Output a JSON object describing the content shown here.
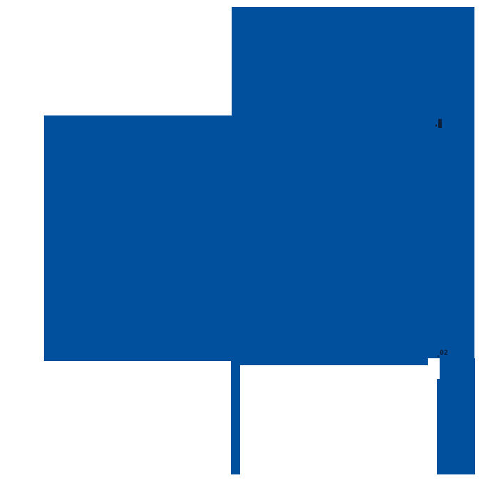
{
  "canvas": {
    "background_color": "#ffffff",
    "accent_blue": "#00509e",
    "artifact_color": "#0c1e38"
  },
  "shapes": {
    "right_block": {
      "name": "large-right-blue-block"
    },
    "left_block": {
      "name": "large-left-blue-block"
    },
    "vertical_bar": {
      "name": "thin-descending-bar"
    },
    "br_column": {
      "name": "bottom-right-column"
    },
    "white_notch": {
      "name": "stair-step-notch"
    }
  },
  "artifacts": {
    "top": {
      "name": "tiny-glyph-artifact-top"
    },
    "bottom": {
      "name": "tiny-glyph-artifact-bottom",
      "text": "02"
    }
  }
}
